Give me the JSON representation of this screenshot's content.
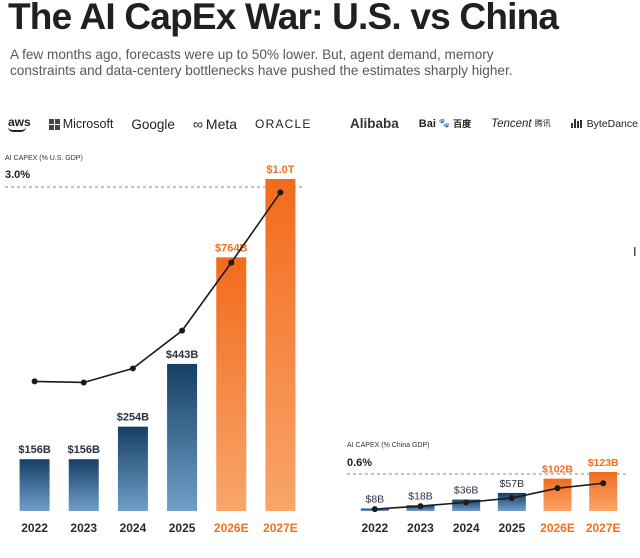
{
  "title": "The AI CapEx War: U.S. vs China",
  "subtitle": "A few months ago, forecasts were up to 50% lower. But, agent demand, memory constraints and data-centery bottlenecks have pushed the estimates sharply higher.",
  "logos_us": [
    "aws",
    "Microsoft",
    "Google",
    "Meta",
    "ORACLE"
  ],
  "logos_cn": [
    "Alibaba",
    "Bai",
    "百度",
    "Tencent",
    "腾讯",
    "ByteDance"
  ],
  "colors": {
    "actual": "#1f4a73",
    "estimate": "#f26b1d",
    "line": "#1b1b1b"
  },
  "chart_data": [
    {
      "type": "bar",
      "ylabel": "AI CAPEX (% U.S. GDP)",
      "reference_label": "3.0%",
      "categories": [
        "2022",
        "2023",
        "2024",
        "2025",
        "2026E",
        "2027E"
      ],
      "estimated": [
        false,
        false,
        false,
        false,
        true,
        true
      ],
      "values": [
        156,
        156,
        254,
        443,
        764,
        1000
      ],
      "value_labels": [
        "$156B",
        "$156B",
        "$254B",
        "$443B",
        "$764B",
        "$1.0T"
      ],
      "unit": "USD billions",
      "ylim": [
        0,
        1000
      ],
      "gdp_share_pct": [
        1.2,
        1.19,
        1.32,
        1.67,
        2.3,
        2.95
      ],
      "gdp_share_ylim": [
        0,
        3.0
      ],
      "grid": false
    },
    {
      "type": "bar",
      "ylabel": "AI CAPEX (% China GDP)",
      "reference_label": "0.6%",
      "categories": [
        "2022",
        "2023",
        "2024",
        "2025",
        "2026E",
        "2027E"
      ],
      "estimated": [
        false,
        false,
        false,
        false,
        true,
        true
      ],
      "values": [
        8,
        18,
        36,
        57,
        102,
        123
      ],
      "value_labels": [
        "$8B",
        "$18B",
        "$36B",
        "$57B",
        "$102B",
        "$123B"
      ],
      "unit": "USD billions",
      "ylim": [
        0,
        123
      ],
      "gdp_share_pct": [
        0.03,
        0.08,
        0.14,
        0.21,
        0.37,
        0.45
      ],
      "gdp_share_ylim": [
        0,
        0.6
      ],
      "grid": false
    }
  ]
}
